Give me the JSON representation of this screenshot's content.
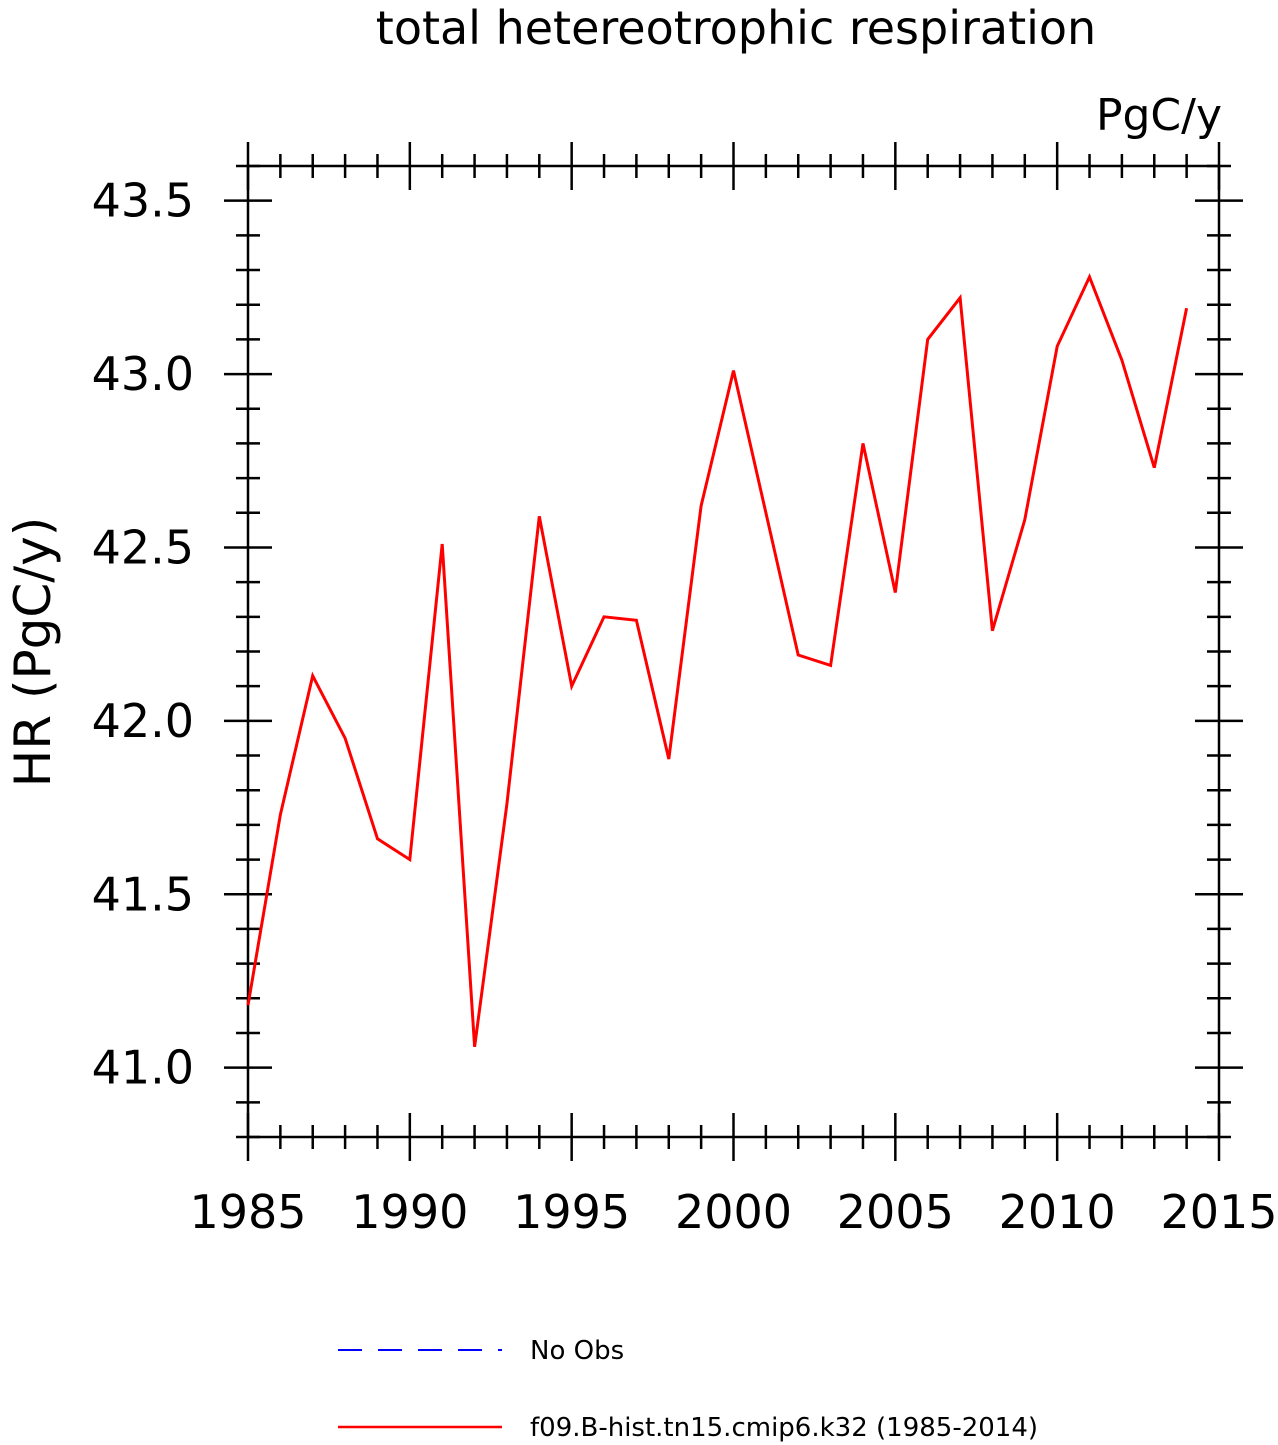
{
  "chart_data": {
    "type": "line",
    "title": "total hetereotrophic respiration",
    "units": "PgC/y",
    "ylabel": "HR  (PgC/y)",
    "xlabel": "",
    "xlim": [
      1985,
      2015
    ],
    "ylim": [
      40.8,
      43.6
    ],
    "x_ticks": [
      1985,
      1990,
      1995,
      2000,
      2005,
      2010,
      2015
    ],
    "y_ticks": [
      41.0,
      41.5,
      42.0,
      42.5,
      43.0,
      43.5
    ],
    "x_tick_labels": [
      "1985",
      "1990",
      "1995",
      "2000",
      "2005",
      "2010",
      "2015"
    ],
    "y_tick_labels": [
      "41.0",
      "41.5",
      "42.0",
      "42.5",
      "43.0",
      "43.5"
    ],
    "grid": false,
    "legend_position": "bottom",
    "series": [
      {
        "name": "f09.B-hist.tn15.cmip6.k32 (1985-2014)",
        "color": "#ff0000",
        "style": "solid",
        "x": [
          1985,
          1986,
          1987,
          1988,
          1989,
          1990,
          1991,
          1992,
          1993,
          1994,
          1995,
          1996,
          1997,
          1998,
          1999,
          2000,
          2001,
          2002,
          2003,
          2004,
          2005,
          2006,
          2007,
          2008,
          2009,
          2010,
          2011,
          2012,
          2013,
          2014
        ],
        "y": [
          41.18,
          41.73,
          42.13,
          41.95,
          41.66,
          41.6,
          42.51,
          41.06,
          41.76,
          42.59,
          42.1,
          42.3,
          42.29,
          41.89,
          42.62,
          43.01,
          42.6,
          42.19,
          42.16,
          42.8,
          42.37,
          43.1,
          43.22,
          42.26,
          42.58,
          43.08,
          43.28,
          43.04,
          42.73,
          43.19
        ]
      }
    ],
    "legend": [
      {
        "label": "No Obs",
        "color": "#0000ff",
        "style": "dashed"
      },
      {
        "label": "f09.B-hist.tn15.cmip6.k32 (1985-2014)",
        "color": "#ff0000",
        "style": "solid"
      }
    ]
  }
}
